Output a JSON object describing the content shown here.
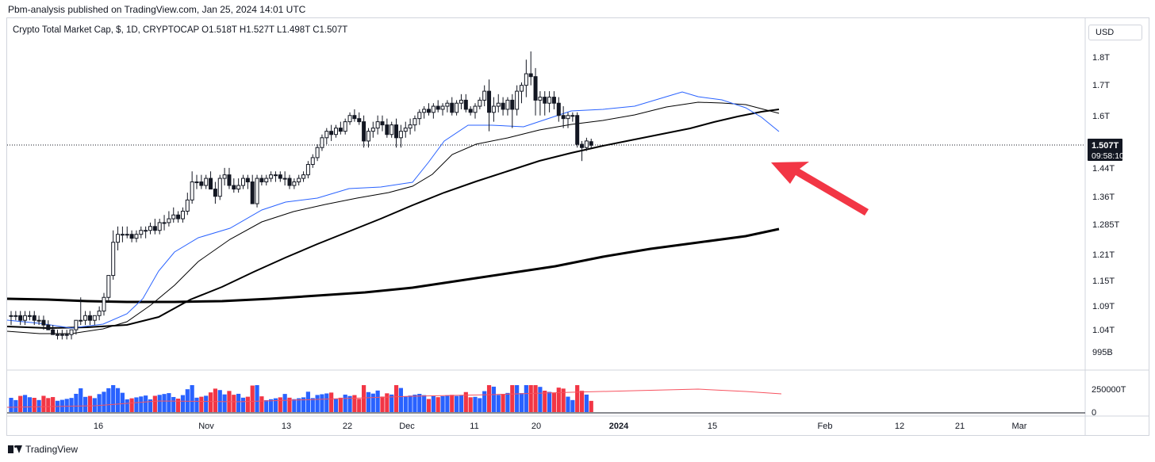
{
  "header": {
    "publisher": "Pbm-analysis published on TradingView.com, Jan 25, 2024 14:01 UTC"
  },
  "chart_header": {
    "title": "Crypto Total Market Cap, $, 1D, CRYPTOCAP  O1.518T  H1.527T  L1.498T  C1.507T"
  },
  "currency_button": {
    "label": "USD"
  },
  "footer": {
    "brand": "TradingView"
  },
  "price_badge": {
    "price": "1.507T",
    "countdown": "09:58:10"
  },
  "colors": {
    "up_volume": "#2962ff",
    "down_volume": "#f23645",
    "candle": "#131722",
    "ma_fast": "#2962ff",
    "annotation_arrow": "#f23645"
  },
  "chart_data": {
    "type": "candlestick",
    "title": "Crypto Total Market Cap, $, 1D, CRYPTOCAP",
    "y_axis_labels": [
      "1.8T",
      "1.7T",
      "1.6T",
      "1.44T",
      "1.36T",
      "1.285T",
      "1.21T",
      "1.15T",
      "1.09T",
      "1.04T",
      "995B"
    ],
    "x_axis_labels": [
      "16",
      "Nov",
      "13",
      "22",
      "Dec",
      "11",
      "20",
      "2024",
      "15",
      "Feb",
      "12",
      "21",
      "Mar"
    ],
    "volume_axis_labels": [
      "250000T",
      "0"
    ],
    "last_price": 1.507,
    "ohlc_last": {
      "open": 1.518,
      "high": 1.527,
      "low": 1.498,
      "close": 1.507
    },
    "scale": "log",
    "candles": [
      [
        1.07,
        1.08,
        1.05,
        1.07
      ],
      [
        1.07,
        1.08,
        1.06,
        1.07
      ],
      [
        1.07,
        1.08,
        1.05,
        1.06
      ],
      [
        1.06,
        1.08,
        1.05,
        1.07
      ],
      [
        1.07,
        1.08,
        1.06,
        1.07
      ],
      [
        1.07,
        1.08,
        1.05,
        1.06
      ],
      [
        1.06,
        1.07,
        1.05,
        1.06
      ],
      [
        1.06,
        1.07,
        1.04,
        1.05
      ],
      [
        1.05,
        1.06,
        1.04,
        1.04
      ],
      [
        1.04,
        1.05,
        1.03,
        1.03
      ],
      [
        1.03,
        1.04,
        1.02,
        1.03
      ],
      [
        1.03,
        1.04,
        1.02,
        1.03
      ],
      [
        1.03,
        1.04,
        1.02,
        1.03
      ],
      [
        1.03,
        1.04,
        1.02,
        1.04
      ],
      [
        1.04,
        1.06,
        1.03,
        1.06
      ],
      [
        1.06,
        1.11,
        1.05,
        1.06
      ],
      [
        1.06,
        1.08,
        1.05,
        1.07
      ],
      [
        1.07,
        1.08,
        1.05,
        1.06
      ],
      [
        1.06,
        1.07,
        1.05,
        1.07
      ],
      [
        1.07,
        1.09,
        1.06,
        1.08
      ],
      [
        1.08,
        1.12,
        1.07,
        1.11
      ],
      [
        1.11,
        1.16,
        1.1,
        1.16
      ],
      [
        1.16,
        1.27,
        1.15,
        1.24
      ],
      [
        1.24,
        1.28,
        1.22,
        1.26
      ],
      [
        1.26,
        1.28,
        1.24,
        1.26
      ],
      [
        1.26,
        1.28,
        1.25,
        1.26
      ],
      [
        1.26,
        1.27,
        1.24,
        1.25
      ],
      [
        1.25,
        1.27,
        1.24,
        1.26
      ],
      [
        1.26,
        1.28,
        1.25,
        1.27
      ],
      [
        1.27,
        1.28,
        1.25,
        1.27
      ],
      [
        1.27,
        1.29,
        1.26,
        1.28
      ],
      [
        1.28,
        1.3,
        1.26,
        1.27
      ],
      [
        1.27,
        1.3,
        1.26,
        1.29
      ],
      [
        1.29,
        1.31,
        1.27,
        1.29
      ],
      [
        1.29,
        1.32,
        1.28,
        1.3
      ],
      [
        1.3,
        1.33,
        1.29,
        1.31
      ],
      [
        1.31,
        1.32,
        1.29,
        1.3
      ],
      [
        1.3,
        1.33,
        1.29,
        1.32
      ],
      [
        1.32,
        1.37,
        1.31,
        1.35
      ],
      [
        1.35,
        1.43,
        1.34,
        1.4
      ],
      [
        1.4,
        1.42,
        1.38,
        1.4
      ],
      [
        1.4,
        1.42,
        1.38,
        1.39
      ],
      [
        1.39,
        1.42,
        1.38,
        1.41
      ],
      [
        1.41,
        1.43,
        1.38,
        1.38
      ],
      [
        1.38,
        1.4,
        1.34,
        1.36
      ],
      [
        1.36,
        1.42,
        1.35,
        1.41
      ],
      [
        1.41,
        1.44,
        1.39,
        1.42
      ],
      [
        1.42,
        1.44,
        1.38,
        1.39
      ],
      [
        1.39,
        1.41,
        1.37,
        1.38
      ],
      [
        1.38,
        1.41,
        1.37,
        1.39
      ],
      [
        1.39,
        1.42,
        1.38,
        1.41
      ],
      [
        1.41,
        1.42,
        1.38,
        1.4
      ],
      [
        1.4,
        1.42,
        1.34,
        1.34
      ],
      [
        1.34,
        1.42,
        1.33,
        1.41
      ],
      [
        1.41,
        1.42,
        1.39,
        1.4
      ],
      [
        1.4,
        1.42,
        1.39,
        1.41
      ],
      [
        1.41,
        1.43,
        1.4,
        1.42
      ],
      [
        1.42,
        1.43,
        1.4,
        1.42
      ],
      [
        1.42,
        1.43,
        1.4,
        1.41
      ],
      [
        1.41,
        1.43,
        1.39,
        1.41
      ],
      [
        1.41,
        1.42,
        1.38,
        1.39
      ],
      [
        1.39,
        1.41,
        1.38,
        1.4
      ],
      [
        1.4,
        1.42,
        1.39,
        1.41
      ],
      [
        1.41,
        1.43,
        1.4,
        1.42
      ],
      [
        1.42,
        1.46,
        1.41,
        1.45
      ],
      [
        1.45,
        1.48,
        1.44,
        1.47
      ],
      [
        1.47,
        1.51,
        1.46,
        1.5
      ],
      [
        1.5,
        1.54,
        1.49,
        1.53
      ],
      [
        1.53,
        1.56,
        1.51,
        1.55
      ],
      [
        1.55,
        1.57,
        1.52,
        1.54
      ],
      [
        1.54,
        1.57,
        1.53,
        1.56
      ],
      [
        1.56,
        1.58,
        1.54,
        1.55
      ],
      [
        1.55,
        1.59,
        1.54,
        1.58
      ],
      [
        1.58,
        1.61,
        1.57,
        1.6
      ],
      [
        1.6,
        1.62,
        1.58,
        1.59
      ],
      [
        1.59,
        1.61,
        1.57,
        1.58
      ],
      [
        1.58,
        1.6,
        1.5,
        1.52
      ],
      [
        1.52,
        1.56,
        1.5,
        1.55
      ],
      [
        1.55,
        1.58,
        1.53,
        1.56
      ],
      [
        1.56,
        1.6,
        1.54,
        1.58
      ],
      [
        1.58,
        1.6,
        1.55,
        1.57
      ],
      [
        1.57,
        1.59,
        1.53,
        1.54
      ],
      [
        1.54,
        1.58,
        1.53,
        1.57
      ],
      [
        1.57,
        1.59,
        1.5,
        1.53
      ],
      [
        1.53,
        1.57,
        1.5,
        1.55
      ],
      [
        1.55,
        1.58,
        1.53,
        1.56
      ],
      [
        1.56,
        1.59,
        1.54,
        1.57
      ],
      [
        1.57,
        1.6,
        1.55,
        1.59
      ],
      [
        1.59,
        1.62,
        1.57,
        1.61
      ],
      [
        1.61,
        1.63,
        1.59,
        1.62
      ],
      [
        1.62,
        1.64,
        1.6,
        1.61
      ],
      [
        1.61,
        1.64,
        1.59,
        1.63
      ],
      [
        1.63,
        1.65,
        1.61,
        1.62
      ],
      [
        1.62,
        1.64,
        1.6,
        1.63
      ],
      [
        1.63,
        1.65,
        1.61,
        1.64
      ],
      [
        1.64,
        1.66,
        1.6,
        1.61
      ],
      [
        1.61,
        1.65,
        1.6,
        1.64
      ],
      [
        1.64,
        1.67,
        1.62,
        1.65
      ],
      [
        1.65,
        1.67,
        1.61,
        1.62
      ],
      [
        1.62,
        1.63,
        1.6,
        1.61
      ],
      [
        1.61,
        1.64,
        1.59,
        1.63
      ],
      [
        1.63,
        1.66,
        1.62,
        1.65
      ],
      [
        1.65,
        1.7,
        1.63,
        1.68
      ],
      [
        1.68,
        1.72,
        1.55,
        1.61
      ],
      [
        1.61,
        1.66,
        1.58,
        1.63
      ],
      [
        1.63,
        1.67,
        1.61,
        1.64
      ],
      [
        1.64,
        1.66,
        1.6,
        1.62
      ],
      [
        1.62,
        1.66,
        1.6,
        1.65
      ],
      [
        1.65,
        1.67,
        1.56,
        1.62
      ],
      [
        1.62,
        1.7,
        1.6,
        1.68
      ],
      [
        1.68,
        1.71,
        1.64,
        1.7
      ],
      [
        1.7,
        1.79,
        1.66,
        1.74
      ],
      [
        1.74,
        1.82,
        1.7,
        1.73
      ],
      [
        1.73,
        1.76,
        1.6,
        1.65
      ],
      [
        1.65,
        1.68,
        1.6,
        1.66
      ],
      [
        1.66,
        1.68,
        1.6,
        1.64
      ],
      [
        1.64,
        1.68,
        1.61,
        1.66
      ],
      [
        1.66,
        1.68,
        1.62,
        1.64
      ],
      [
        1.64,
        1.66,
        1.58,
        1.6
      ],
      [
        1.6,
        1.63,
        1.56,
        1.59
      ],
      [
        1.59,
        1.61,
        1.56,
        1.6
      ],
      [
        1.6,
        1.61,
        1.58,
        1.6
      ],
      [
        1.6,
        1.61,
        1.5,
        1.51
      ],
      [
        1.51,
        1.52,
        1.46,
        1.5
      ],
      [
        1.5,
        1.53,
        1.49,
        1.52
      ],
      [
        1.518,
        1.527,
        1.498,
        1.507
      ]
    ]
  }
}
